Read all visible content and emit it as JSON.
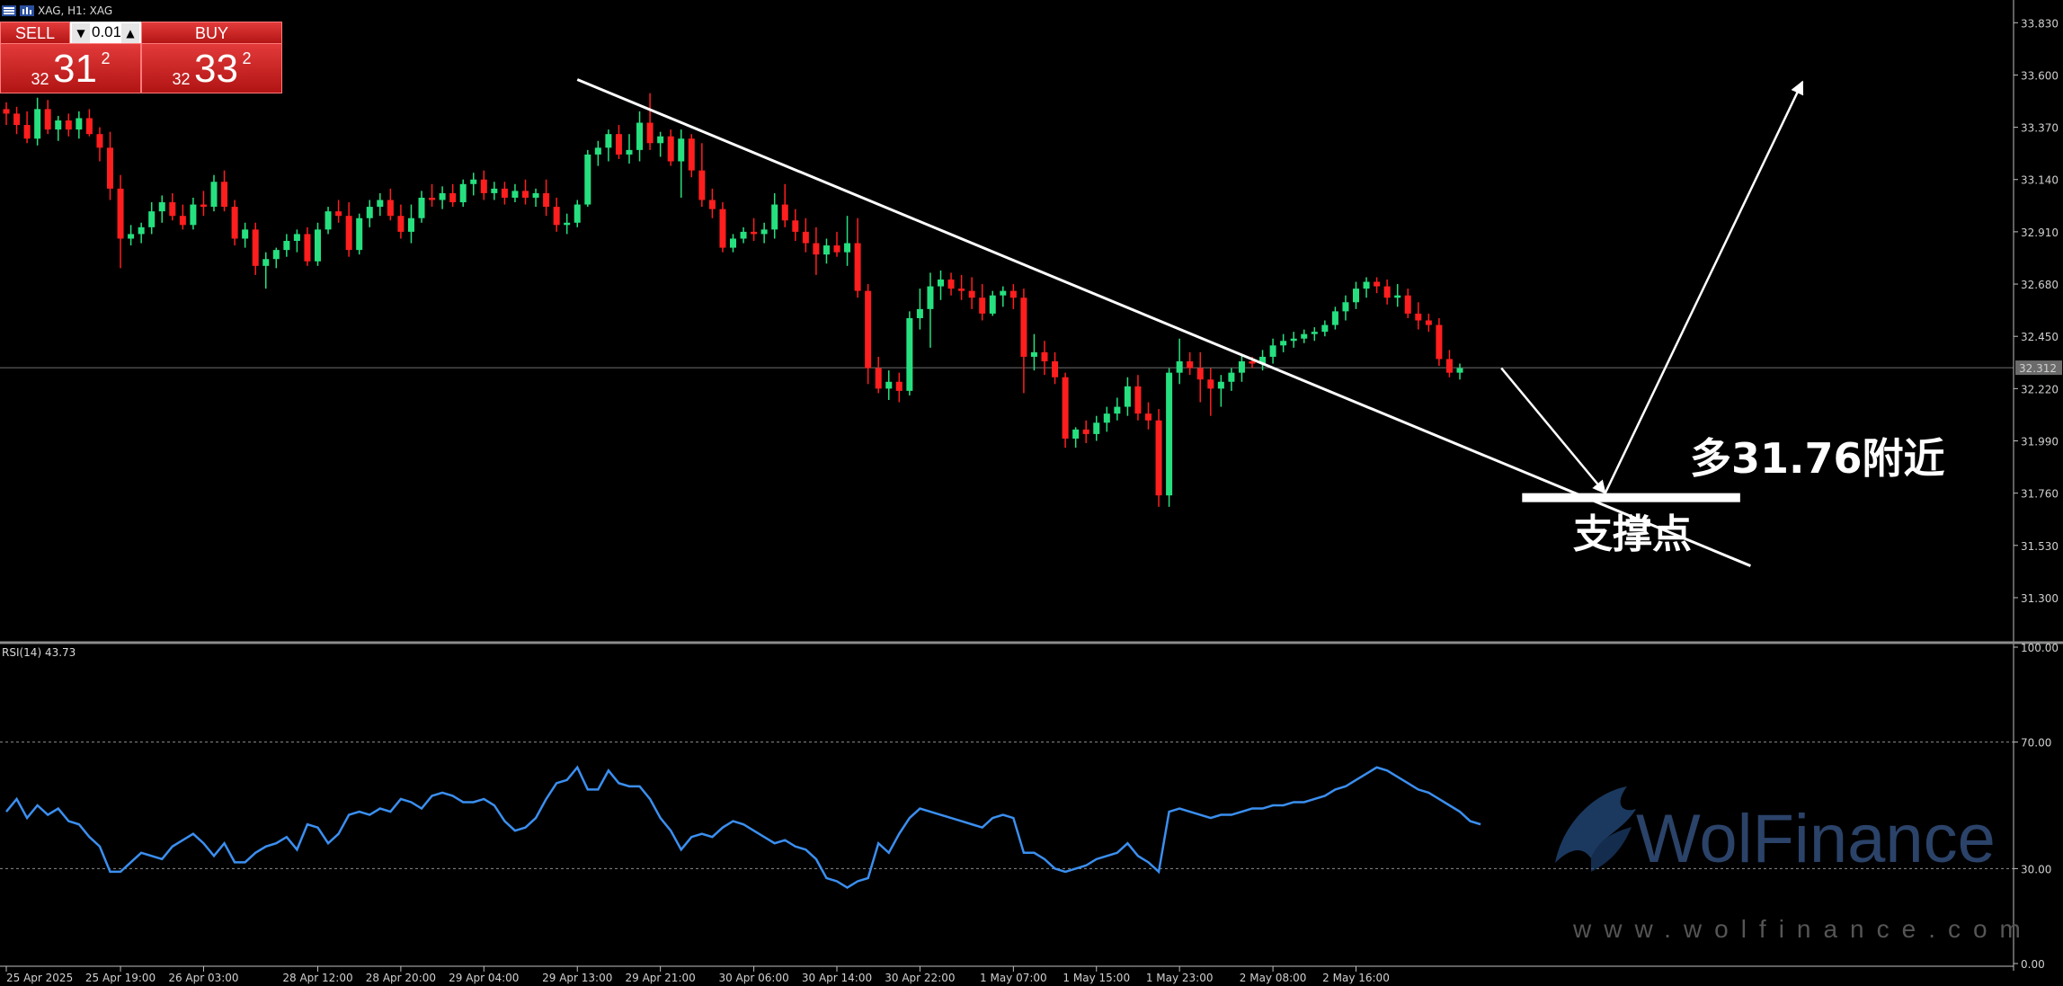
{
  "header": {
    "symbol_title": "XAG, H1:  XAG"
  },
  "trade_panel": {
    "sell_label": "SELL",
    "buy_label": "BUY",
    "lot": "0.01",
    "sell_price": {
      "prefix": "32",
      "main": "31",
      "sup": "2"
    },
    "buy_price": {
      "prefix": "32",
      "main": "33",
      "sup": "2"
    }
  },
  "annotations": {
    "long_label": "多31.76附近",
    "support_label": "支撑点"
  },
  "watermark": {
    "name": "WolFinance",
    "url": "www.wolfinance.com"
  },
  "colors": {
    "bull": "#26e07f",
    "bear": "#ff1e1e",
    "rsi": "#3b8ff0",
    "background": "#000000"
  },
  "chart_data": [
    {
      "type": "candlestick",
      "series_name": "XAG H1",
      "ylim": [
        31.11,
        33.93
      ],
      "yticks": [
        33.83,
        33.6,
        33.37,
        33.14,
        32.91,
        32.68,
        32.45,
        32.22,
        31.99,
        31.76,
        31.53,
        31.3
      ],
      "ytick_labels": [
        "33.830",
        "33.600",
        "33.370",
        "33.140",
        "32.910",
        "32.680",
        "32.450",
        "32.220",
        "31.990",
        "31.760",
        "31.530",
        "31.300"
      ],
      "current_price": 32.312,
      "current_price_label": "32.312",
      "xticks": [
        {
          "i": 0,
          "label": "25 Apr 2025"
        },
        {
          "i": 11,
          "label": "25 Apr 19:00"
        },
        {
          "i": 19,
          "label": "26 Apr 03:00"
        },
        {
          "i": 30,
          "label": "28 Apr 12:00"
        },
        {
          "i": 38,
          "label": "28 Apr 20:00"
        },
        {
          "i": 46,
          "label": "29 Apr 04:00"
        },
        {
          "i": 55,
          "label": "29 Apr 13:00"
        },
        {
          "i": 63,
          "label": "29 Apr 21:00"
        },
        {
          "i": 72,
          "label": "30 Apr 06:00"
        },
        {
          "i": 80,
          "label": "30 Apr 14:00"
        },
        {
          "i": 88,
          "label": "30 Apr 22:00"
        },
        {
          "i": 97,
          "label": "1 May 07:00"
        },
        {
          "i": 105,
          "label": "1 May 15:00"
        },
        {
          "i": 113,
          "label": "1 May 23:00"
        },
        {
          "i": 122,
          "label": "2 May 08:00"
        },
        {
          "i": 130,
          "label": "2 May 16:00"
        }
      ],
      "ohlc": [
        [
          33.45,
          33.48,
          33.38,
          33.43
        ],
        [
          33.43,
          33.46,
          33.34,
          33.38
        ],
        [
          33.38,
          33.44,
          33.3,
          33.32
        ],
        [
          33.32,
          33.5,
          33.29,
          33.45
        ],
        [
          33.45,
          33.49,
          33.34,
          33.36
        ],
        [
          33.36,
          33.42,
          33.31,
          33.4
        ],
        [
          33.4,
          33.43,
          33.33,
          33.36
        ],
        [
          33.36,
          33.44,
          33.32,
          33.41
        ],
        [
          33.41,
          33.45,
          33.33,
          33.34
        ],
        [
          33.34,
          33.37,
          33.22,
          33.28
        ],
        [
          33.28,
          33.35,
          33.05,
          33.1
        ],
        [
          33.1,
          33.16,
          32.75,
          32.88
        ],
        [
          32.88,
          32.94,
          32.85,
          32.9
        ],
        [
          32.9,
          32.95,
          32.86,
          32.93
        ],
        [
          32.93,
          33.04,
          32.9,
          33.0
        ],
        [
          33.0,
          33.07,
          32.95,
          33.04
        ],
        [
          33.04,
          33.08,
          32.96,
          32.98
        ],
        [
          32.98,
          33.03,
          32.92,
          32.94
        ],
        [
          32.94,
          33.06,
          32.92,
          33.03
        ],
        [
          33.03,
          33.09,
          32.98,
          33.02
        ],
        [
          33.02,
          33.16,
          33.0,
          33.13
        ],
        [
          33.13,
          33.18,
          33.0,
          33.02
        ],
        [
          33.02,
          33.05,
          32.85,
          32.88
        ],
        [
          32.88,
          32.95,
          32.84,
          32.92
        ],
        [
          32.92,
          32.95,
          32.72,
          32.76
        ],
        [
          32.76,
          32.82,
          32.66,
          32.79
        ],
        [
          32.79,
          32.84,
          32.75,
          32.83
        ],
        [
          32.83,
          32.9,
          32.8,
          32.87
        ],
        [
          32.87,
          32.92,
          32.82,
          32.9
        ],
        [
          32.9,
          32.93,
          32.76,
          32.78
        ],
        [
          32.78,
          32.95,
          32.76,
          32.92
        ],
        [
          32.92,
          33.02,
          32.9,
          33.0
        ],
        [
          33.0,
          33.05,
          32.95,
          32.98
        ],
        [
          32.98,
          33.04,
          32.8,
          32.83
        ],
        [
          32.83,
          32.99,
          32.81,
          32.97
        ],
        [
          32.97,
          33.05,
          32.93,
          33.02
        ],
        [
          33.02,
          33.08,
          32.98,
          33.05
        ],
        [
          33.05,
          33.1,
          32.96,
          32.98
        ],
        [
          32.98,
          33.03,
          32.88,
          32.91
        ],
        [
          32.91,
          33.03,
          32.86,
          32.97
        ],
        [
          32.97,
          33.09,
          32.95,
          33.06
        ],
        [
          33.06,
          33.12,
          33.02,
          33.05
        ],
        [
          33.05,
          33.11,
          33.01,
          33.08
        ],
        [
          33.08,
          33.12,
          33.02,
          33.04
        ],
        [
          33.04,
          33.14,
          33.02,
          33.12
        ],
        [
          33.12,
          33.17,
          33.07,
          33.14
        ],
        [
          33.14,
          33.18,
          33.05,
          33.08
        ],
        [
          33.08,
          33.13,
          33.05,
          33.1
        ],
        [
          33.1,
          33.13,
          33.03,
          33.06
        ],
        [
          33.06,
          33.12,
          33.04,
          33.09
        ],
        [
          33.09,
          33.14,
          33.03,
          33.06
        ],
        [
          33.06,
          33.1,
          33.02,
          33.08
        ],
        [
          33.08,
          33.14,
          32.98,
          33.02
        ],
        [
          33.02,
          33.06,
          32.91,
          32.94
        ],
        [
          32.94,
          32.99,
          32.9,
          32.95
        ],
        [
          32.95,
          33.05,
          32.93,
          33.03
        ],
        [
          33.03,
          33.27,
          33.02,
          33.25
        ],
        [
          33.25,
          33.31,
          33.2,
          33.28
        ],
        [
          33.28,
          33.36,
          33.22,
          33.34
        ],
        [
          33.34,
          33.38,
          33.23,
          33.25
        ],
        [
          33.25,
          33.34,
          33.21,
          33.27
        ],
        [
          33.27,
          33.44,
          33.22,
          33.39
        ],
        [
          33.39,
          33.52,
          33.27,
          33.3
        ],
        [
          33.3,
          33.35,
          33.24,
          33.33
        ],
        [
          33.33,
          33.36,
          33.2,
          33.22
        ],
        [
          33.22,
          33.36,
          33.06,
          33.32
        ],
        [
          33.32,
          33.34,
          33.15,
          33.18
        ],
        [
          33.18,
          33.3,
          33.02,
          33.05
        ],
        [
          33.05,
          33.1,
          32.97,
          33.01
        ],
        [
          33.01,
          33.04,
          32.82,
          32.84
        ],
        [
          32.84,
          32.9,
          32.82,
          32.88
        ],
        [
          32.88,
          32.93,
          32.86,
          32.91
        ],
        [
          32.91,
          32.97,
          32.87,
          32.9
        ],
        [
          32.9,
          32.95,
          32.86,
          32.92
        ],
        [
          32.92,
          33.08,
          32.88,
          33.03
        ],
        [
          33.03,
          33.12,
          32.93,
          32.96
        ],
        [
          32.96,
          33.01,
          32.87,
          32.91
        ],
        [
          32.91,
          32.97,
          32.82,
          32.86
        ],
        [
          32.86,
          32.93,
          32.72,
          32.81
        ],
        [
          32.81,
          32.88,
          32.77,
          32.85
        ],
        [
          32.85,
          32.91,
          32.8,
          32.82
        ],
        [
          32.82,
          32.98,
          32.76,
          32.86
        ],
        [
          32.86,
          32.97,
          32.62,
          32.65
        ],
        [
          32.65,
          32.68,
          32.24,
          32.31
        ],
        [
          32.31,
          32.36,
          32.2,
          32.22
        ],
        [
          32.22,
          32.3,
          32.17,
          32.25
        ],
        [
          32.25,
          32.29,
          32.16,
          32.21
        ],
        [
          32.21,
          32.56,
          32.19,
          32.53
        ],
        [
          32.53,
          32.66,
          32.48,
          32.57
        ],
        [
          32.57,
          32.73,
          32.4,
          32.67
        ],
        [
          32.67,
          32.74,
          32.61,
          32.7
        ],
        [
          32.7,
          32.73,
          32.63,
          32.66
        ],
        [
          32.66,
          32.72,
          32.61,
          32.65
        ],
        [
          32.65,
          32.71,
          32.57,
          32.62
        ],
        [
          32.62,
          32.68,
          32.52,
          32.55
        ],
        [
          32.55,
          32.65,
          32.54,
          32.63
        ],
        [
          32.63,
          32.67,
          32.58,
          32.65
        ],
        [
          32.65,
          32.68,
          32.57,
          32.62
        ],
        [
          32.62,
          32.66,
          32.2,
          32.36
        ],
        [
          32.36,
          32.46,
          32.3,
          32.38
        ],
        [
          32.38,
          32.43,
          32.28,
          32.34
        ],
        [
          32.34,
          32.38,
          32.24,
          32.27
        ],
        [
          32.27,
          32.29,
          31.96,
          32.0
        ],
        [
          32.0,
          32.05,
          31.96,
          32.04
        ],
        [
          32.04,
          32.08,
          31.98,
          32.02
        ],
        [
          32.02,
          32.1,
          31.99,
          32.07
        ],
        [
          32.07,
          32.14,
          32.03,
          32.11
        ],
        [
          32.11,
          32.18,
          32.08,
          32.14
        ],
        [
          32.14,
          32.27,
          32.1,
          32.23
        ],
        [
          32.23,
          32.28,
          32.08,
          32.11
        ],
        [
          32.11,
          32.16,
          32.04,
          32.08
        ],
        [
          32.08,
          32.13,
          31.7,
          31.75
        ],
        [
          31.75,
          32.31,
          31.7,
          32.29
        ],
        [
          32.29,
          32.44,
          32.24,
          32.34
        ],
        [
          32.34,
          32.38,
          32.28,
          32.31
        ],
        [
          32.31,
          32.38,
          32.16,
          32.26
        ],
        [
          32.26,
          32.31,
          32.1,
          32.22
        ],
        [
          32.22,
          32.28,
          32.14,
          32.25
        ],
        [
          32.25,
          32.31,
          32.21,
          32.29
        ],
        [
          32.29,
          32.37,
          32.25,
          32.34
        ],
        [
          32.34,
          32.36,
          32.31,
          32.33
        ],
        [
          32.33,
          32.39,
          32.3,
          32.36
        ],
        [
          32.36,
          32.44,
          32.33,
          32.41
        ],
        [
          32.41,
          32.46,
          32.38,
          32.43
        ],
        [
          32.43,
          32.47,
          32.4,
          32.44
        ],
        [
          32.44,
          32.48,
          32.42,
          32.46
        ],
        [
          32.46,
          32.49,
          32.43,
          32.47
        ],
        [
          32.47,
          32.52,
          32.45,
          32.5
        ],
        [
          32.5,
          32.58,
          32.48,
          32.56
        ],
        [
          32.56,
          32.63,
          32.52,
          32.6
        ],
        [
          32.6,
          32.69,
          32.57,
          32.66
        ],
        [
          32.66,
          32.71,
          32.62,
          32.69
        ],
        [
          32.69,
          32.71,
          32.64,
          32.67
        ],
        [
          32.67,
          32.7,
          32.59,
          32.62
        ],
        [
          32.62,
          32.68,
          32.58,
          32.63
        ],
        [
          32.63,
          32.66,
          32.53,
          32.55
        ],
        [
          32.55,
          32.6,
          32.48,
          32.52
        ],
        [
          32.52,
          32.55,
          32.47,
          32.5
        ],
        [
          32.5,
          32.53,
          32.32,
          32.35
        ],
        [
          32.35,
          32.39,
          32.27,
          32.29
        ],
        [
          32.29,
          32.33,
          32.26,
          32.31
        ]
      ],
      "trendline": {
        "from": {
          "i": 55,
          "price": 33.58
        },
        "to": {
          "i": 168,
          "price": 31.44
        }
      },
      "projection": [
        {
          "i": 144,
          "price": 32.31
        },
        {
          "i": 154,
          "price": 31.76
        },
        {
          "i": 173,
          "price": 33.57
        }
      ],
      "support_bar": {
        "i_start": 146,
        "i_end": 167,
        "price": 31.76
      }
    },
    {
      "type": "line",
      "series_name": "RSI(14) 43.73",
      "ylim": [
        0,
        100
      ],
      "yticks": [
        100,
        70,
        30,
        0
      ],
      "ytick_labels": [
        "100.00",
        "70.00",
        "30.00",
        "0.00"
      ],
      "levels": [
        70,
        30
      ],
      "values": [
        48,
        52,
        46,
        50,
        47,
        49,
        45,
        44,
        40,
        37,
        29,
        29,
        32,
        35,
        34,
        33,
        37,
        39,
        41,
        38,
        34,
        38,
        32,
        32,
        35,
        37,
        38,
        40,
        36,
        44,
        43,
        38,
        41,
        47,
        48,
        47,
        49,
        48,
        52,
        51,
        49,
        53,
        54,
        53,
        51,
        51,
        52,
        50,
        45,
        42,
        43,
        46,
        52,
        57,
        58,
        62,
        55,
        55,
        61,
        57,
        56,
        56,
        52,
        46,
        42,
        36,
        40,
        41,
        40,
        43,
        45,
        44,
        42,
        40,
        38,
        39,
        37,
        36,
        33,
        27,
        26,
        24,
        26,
        27,
        38,
        35,
        41,
        46,
        49,
        48,
        47,
        46,
        45,
        44,
        43,
        46,
        47,
        46,
        35,
        35,
        33,
        30,
        29,
        30,
        31,
        33,
        34,
        35,
        38,
        34,
        32,
        29,
        48,
        49,
        48,
        47,
        46,
        47,
        47,
        48,
        49,
        49,
        50,
        50,
        51,
        51,
        52,
        53,
        55,
        56,
        58,
        60,
        62,
        61,
        59,
        57,
        55,
        54,
        52,
        50,
        48,
        45,
        44
      ]
    }
  ]
}
